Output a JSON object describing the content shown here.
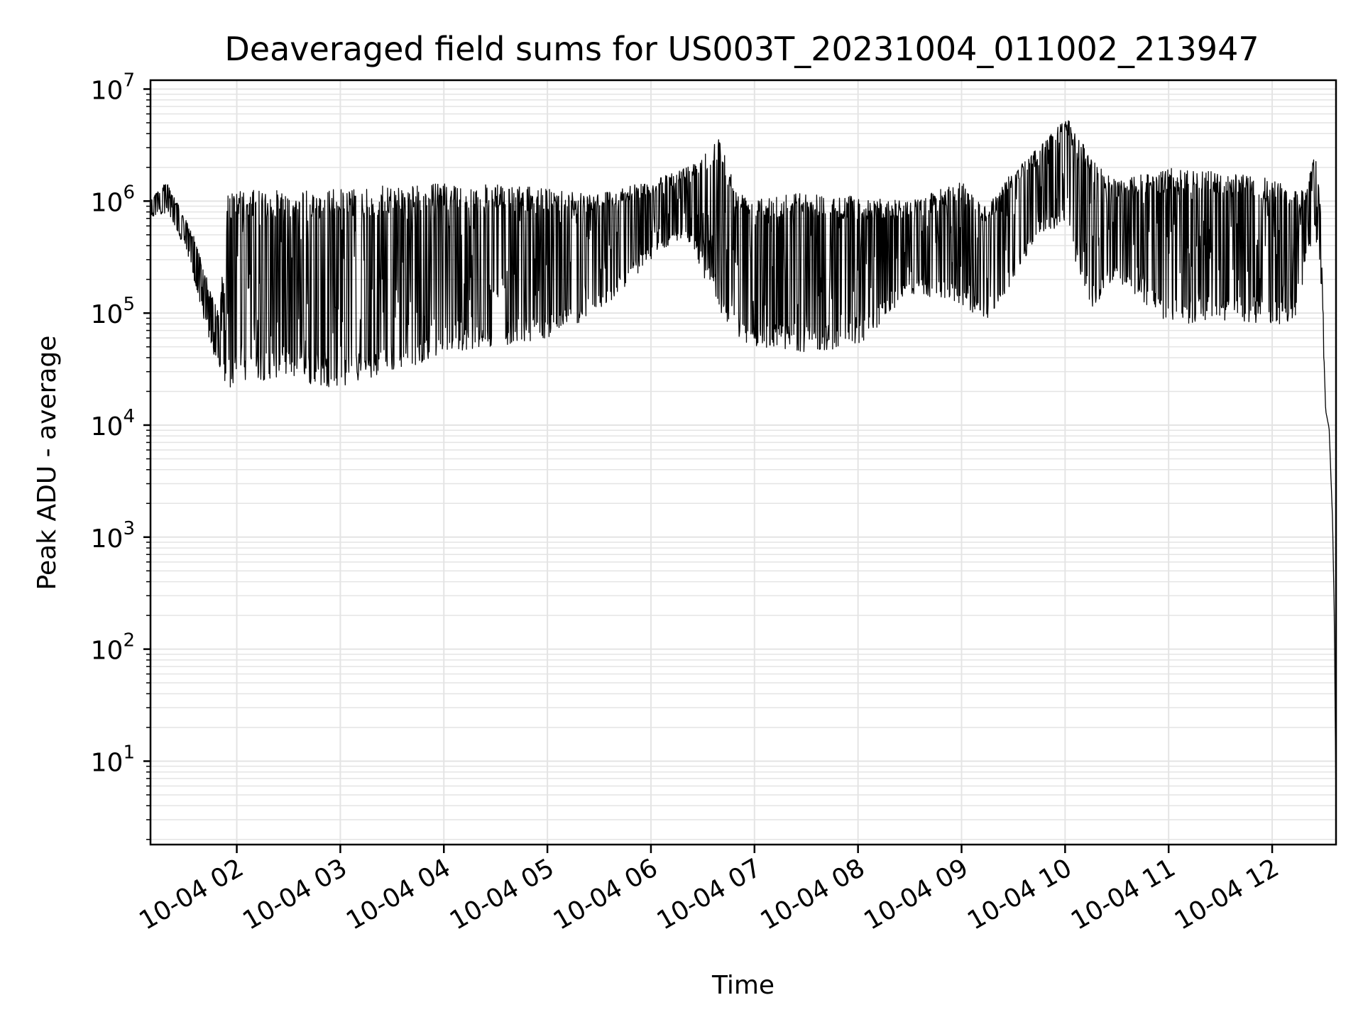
{
  "chart_data": {
    "type": "line",
    "title": "Deaveraged field sums for US003T_20231004_011002_213947",
    "xlabel": "Time",
    "ylabel": "Peak ADU - average",
    "yscale": "log",
    "ylim": [
      1.8,
      12000000
    ],
    "xlim": [
      "10-04 01:10",
      "10-04 12:37"
    ],
    "grid": true,
    "grid_color": "#e4e4e4",
    "line_color": "#000000",
    "x_ticks": [
      "10-04 02",
      "10-04 03",
      "10-04 04",
      "10-04 05",
      "10-04 06",
      "10-04 07",
      "10-04 08",
      "10-04 09",
      "10-04 10",
      "10-04 11",
      "10-04 12"
    ],
    "y_ticks": [
      {
        "base": "10",
        "exp": "1",
        "value": 10
      },
      {
        "base": "10",
        "exp": "2",
        "value": 100
      },
      {
        "base": "10",
        "exp": "3",
        "value": 1000
      },
      {
        "base": "10",
        "exp": "4",
        "value": 10000
      },
      {
        "base": "10",
        "exp": "5",
        "value": 100000
      },
      {
        "base": "10",
        "exp": "6",
        "value": 1000000
      },
      {
        "base": "10",
        "exp": "7",
        "value": 10000000
      }
    ],
    "series": [
      {
        "x": [
          "10-04 01:10",
          "10-04 01:20",
          "10-04 01:25",
          "10-04 01:30",
          "10-04 01:35",
          "10-04 01:40",
          "10-04 01:45",
          "10-04 01:50",
          "10-04 01:55",
          "10-04 02:00",
          "10-04 02:15",
          "10-04 02:30",
          "10-04 02:45",
          "10-04 03:00",
          "10-04 03:15",
          "10-04 03:30",
          "10-04 03:45",
          "10-04 04:00",
          "10-04 04:30",
          "10-04 05:00",
          "10-04 05:30",
          "10-04 06:00",
          "10-04 06:20",
          "10-04 06:40",
          "10-04 06:50",
          "10-04 07:00",
          "10-04 07:30",
          "10-04 08:00",
          "10-04 08:30",
          "10-04 09:00",
          "10-04 09:15",
          "10-04 09:30",
          "10-04 09:45",
          "10-04 10:00",
          "10-04 10:15",
          "10-04 10:30",
          "10-04 11:00",
          "10-04 11:30",
          "10-04 12:00",
          "10-04 12:15",
          "10-04 12:20",
          "10-04 12:25",
          "10-04 12:28",
          "10-04 12:31",
          "10-04 12:33",
          "10-04 12:35",
          "10-04 12:36",
          "10-04 12:37"
        ],
        "y_high": [
          1100000,
          1500000,
          1000000,
          700000,
          500000,
          300000,
          150000,
          100000,
          1200000,
          1250000,
          1250000,
          1250000,
          1250000,
          1300000,
          1300000,
          1400000,
          1400000,
          1450000,
          1400000,
          1300000,
          1200000,
          1500000,
          2000000,
          3800000,
          1200000,
          1200000,
          1200000,
          1100000,
          1000000,
          1500000,
          900000,
          2000000,
          3000000,
          6000000,
          2500000,
          1500000,
          2000000,
          1800000,
          1600000,
          1200000,
          1300000,
          3000000,
          900000,
          15000,
          11000,
          2000,
          400,
          3.5
        ],
        "y_low": [
          700000,
          800000,
          500000,
          400000,
          200000,
          100000,
          50000,
          30000,
          20000,
          25000,
          25000,
          28000,
          22000,
          22000,
          25000,
          30000,
          35000,
          45000,
          50000,
          60000,
          100000,
          300000,
          500000,
          100000,
          60000,
          50000,
          45000,
          50000,
          150000,
          120000,
          80000,
          200000,
          500000,
          600000,
          100000,
          200000,
          80000,
          80000,
          80000,
          80000,
          300000,
          500000,
          200000,
          12000,
          8000,
          1000,
          100,
          3.5
        ]
      }
    ]
  }
}
